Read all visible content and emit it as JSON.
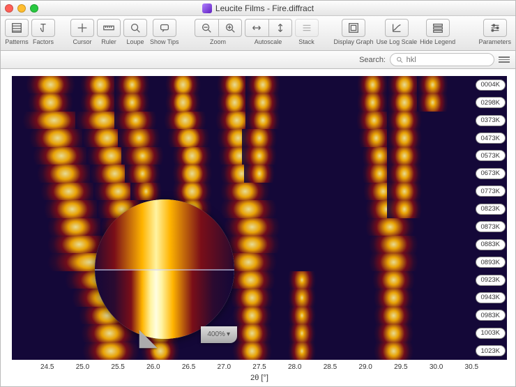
{
  "window": {
    "title": "Leucite Films - Fire.diffract"
  },
  "traffic_colors": {
    "close": "#ff5f57",
    "min": "#ffbd2e",
    "max": "#28c940"
  },
  "toolbar": {
    "patterns": "Patterns",
    "factors": "Factors",
    "cursor": "Cursor",
    "ruler": "Ruler",
    "loupe": "Loupe",
    "showtips": "Show Tips",
    "zoom": "Zoom",
    "autoscale": "Autoscale",
    "stack": "Stack",
    "display": "Display Graph",
    "log": "Use Log Scale",
    "legend": "Hide Legend",
    "params": "Parameters"
  },
  "search": {
    "label": "Search:",
    "placeholder": "hkl"
  },
  "axis": {
    "label": "2θ [°]",
    "min": 24.0,
    "max": 31.0,
    "ticks": [
      24.5,
      25.0,
      25.5,
      26.0,
      26.5,
      27.0,
      27.5,
      28.0,
      28.5,
      29.0,
      29.5,
      30.0,
      30.5
    ]
  },
  "colors": {
    "plot_bg": "#140838",
    "peak_center": "#fff3a0",
    "peak_mid": "#ffb400",
    "peak_outer": "#7a0e18",
    "peak_edge": "#2a0a30"
  },
  "rows": [
    {
      "label": "0004K",
      "peaks": [
        {
          "c": 24.55,
          "w": 0.35,
          "i": 0.9
        },
        {
          "c": 25.25,
          "w": 0.28,
          "i": 0.85
        },
        {
          "c": 25.7,
          "w": 0.25,
          "i": 0.5
        },
        {
          "c": 26.42,
          "w": 0.25,
          "i": 1.0
        },
        {
          "c": 27.15,
          "w": 0.25,
          "i": 0.95
        },
        {
          "c": 27.55,
          "w": 0.25,
          "i": 0.75
        },
        {
          "c": 29.1,
          "w": 0.22,
          "i": 0.55
        },
        {
          "c": 29.55,
          "w": 0.25,
          "i": 0.8
        },
        {
          "c": 29.95,
          "w": 0.22,
          "i": 0.4
        }
      ]
    },
    {
      "label": "0298K",
      "peaks": [
        {
          "c": 24.55,
          "w": 0.32,
          "i": 0.9
        },
        {
          "c": 25.25,
          "w": 0.28,
          "i": 0.85
        },
        {
          "c": 25.7,
          "w": 0.25,
          "i": 0.5
        },
        {
          "c": 26.42,
          "w": 0.25,
          "i": 1.0
        },
        {
          "c": 27.15,
          "w": 0.25,
          "i": 0.9
        },
        {
          "c": 27.55,
          "w": 0.25,
          "i": 0.7
        },
        {
          "c": 29.1,
          "w": 0.22,
          "i": 0.55
        },
        {
          "c": 29.55,
          "w": 0.25,
          "i": 0.8
        },
        {
          "c": 29.95,
          "w": 0.22,
          "i": 0.35
        }
      ]
    },
    {
      "label": "0373K",
      "peaks": [
        {
          "c": 24.6,
          "w": 0.45,
          "i": 0.9
        },
        {
          "c": 25.3,
          "w": 0.4,
          "i": 0.85
        },
        {
          "c": 25.75,
          "w": 0.3,
          "i": 0.5
        },
        {
          "c": 26.45,
          "w": 0.3,
          "i": 1.0
        },
        {
          "c": 27.18,
          "w": 0.3,
          "i": 0.9
        },
        {
          "c": 27.55,
          "w": 0.25,
          "i": 0.6
        },
        {
          "c": 29.12,
          "w": 0.25,
          "i": 0.5
        },
        {
          "c": 29.55,
          "w": 0.25,
          "i": 0.75
        }
      ]
    },
    {
      "label": "0473K",
      "peaks": [
        {
          "c": 24.65,
          "w": 0.4,
          "i": 0.9
        },
        {
          "c": 25.35,
          "w": 0.35,
          "i": 0.85
        },
        {
          "c": 25.8,
          "w": 0.3,
          "i": 0.45
        },
        {
          "c": 26.5,
          "w": 0.3,
          "i": 1.0
        },
        {
          "c": 27.2,
          "w": 0.3,
          "i": 0.85
        },
        {
          "c": 27.5,
          "w": 0.25,
          "i": 0.55
        },
        {
          "c": 29.15,
          "w": 0.25,
          "i": 0.5
        },
        {
          "c": 29.55,
          "w": 0.25,
          "i": 0.7
        }
      ]
    },
    {
      "label": "0573K",
      "peaks": [
        {
          "c": 24.7,
          "w": 0.4,
          "i": 0.9
        },
        {
          "c": 25.4,
          "w": 0.35,
          "i": 0.8
        },
        {
          "c": 25.85,
          "w": 0.3,
          "i": 0.4
        },
        {
          "c": 26.55,
          "w": 0.28,
          "i": 1.0
        },
        {
          "c": 27.22,
          "w": 0.3,
          "i": 0.8
        },
        {
          "c": 27.5,
          "w": 0.25,
          "i": 0.5
        },
        {
          "c": 29.2,
          "w": 0.25,
          "i": 0.5
        },
        {
          "c": 29.55,
          "w": 0.25,
          "i": 0.65
        }
      ]
    },
    {
      "label": "0673K",
      "peaks": [
        {
          "c": 24.75,
          "w": 0.4,
          "i": 0.85
        },
        {
          "c": 25.45,
          "w": 0.35,
          "i": 0.8
        },
        {
          "c": 25.85,
          "w": 0.25,
          "i": 0.35
        },
        {
          "c": 26.55,
          "w": 0.28,
          "i": 1.0
        },
        {
          "c": 27.25,
          "w": 0.3,
          "i": 0.8
        },
        {
          "c": 27.5,
          "w": 0.22,
          "i": 0.45
        },
        {
          "c": 29.2,
          "w": 0.25,
          "i": 0.5
        },
        {
          "c": 29.55,
          "w": 0.25,
          "i": 0.6
        }
      ]
    },
    {
      "label": "0773K",
      "peaks": [
        {
          "c": 24.8,
          "w": 0.4,
          "i": 0.85
        },
        {
          "c": 25.5,
          "w": 0.35,
          "i": 0.75
        },
        {
          "c": 25.9,
          "w": 0.22,
          "i": 0.3
        },
        {
          "c": 26.55,
          "w": 0.28,
          "i": 1.0
        },
        {
          "c": 27.3,
          "w": 0.35,
          "i": 0.85
        },
        {
          "c": 29.25,
          "w": 0.28,
          "i": 0.55
        },
        {
          "c": 29.55,
          "w": 0.25,
          "i": 0.55
        }
      ]
    },
    {
      "label": "0823K",
      "peaks": [
        {
          "c": 24.85,
          "w": 0.4,
          "i": 0.8
        },
        {
          "c": 25.55,
          "w": 0.35,
          "i": 0.7
        },
        {
          "c": 26.55,
          "w": 0.28,
          "i": 1.0
        },
        {
          "c": 27.35,
          "w": 0.4,
          "i": 0.85
        },
        {
          "c": 29.3,
          "w": 0.3,
          "i": 0.55
        },
        {
          "c": 29.55,
          "w": 0.25,
          "i": 0.5
        }
      ]
    },
    {
      "label": "0873K",
      "peaks": [
        {
          "c": 24.9,
          "w": 0.4,
          "i": 0.8
        },
        {
          "c": 25.6,
          "w": 0.35,
          "i": 0.65
        },
        {
          "c": 26.55,
          "w": 0.28,
          "i": 1.0
        },
        {
          "c": 27.4,
          "w": 0.4,
          "i": 0.85
        },
        {
          "c": 29.35,
          "w": 0.35,
          "i": 0.6
        }
      ]
    },
    {
      "label": "0883K",
      "peaks": [
        {
          "c": 24.95,
          "w": 0.45,
          "i": 0.8
        },
        {
          "c": 25.65,
          "w": 0.3,
          "i": 0.55
        },
        {
          "c": 26.5,
          "w": 0.28,
          "i": 1.0
        },
        {
          "c": 27.4,
          "w": 0.4,
          "i": 0.85
        },
        {
          "c": 29.4,
          "w": 0.35,
          "i": 0.6
        }
      ]
    },
    {
      "label": "0893K",
      "peaks": [
        {
          "c": 25.1,
          "w": 0.6,
          "i": 0.9
        },
        {
          "c": 26.2,
          "w": 0.3,
          "i": 1.0
        },
        {
          "c": 27.35,
          "w": 0.4,
          "i": 0.85
        },
        {
          "c": 29.4,
          "w": 0.35,
          "i": 0.65
        }
      ]
    },
    {
      "label": "0923K",
      "peaks": [
        {
          "c": 25.25,
          "w": 0.5,
          "i": 0.9
        },
        {
          "c": 26.15,
          "w": 0.28,
          "i": 1.0
        },
        {
          "c": 27.38,
          "w": 0.35,
          "i": 0.85
        },
        {
          "c": 28.1,
          "w": 0.2,
          "i": 0.25
        },
        {
          "c": 29.4,
          "w": 0.3,
          "i": 0.7
        }
      ]
    },
    {
      "label": "0943K",
      "peaks": [
        {
          "c": 25.3,
          "w": 0.45,
          "i": 0.85
        },
        {
          "c": 26.12,
          "w": 0.28,
          "i": 1.0
        },
        {
          "c": 27.4,
          "w": 0.3,
          "i": 0.8
        },
        {
          "c": 28.1,
          "w": 0.2,
          "i": 0.25
        },
        {
          "c": 29.4,
          "w": 0.28,
          "i": 0.7
        }
      ]
    },
    {
      "label": "0983K",
      "peaks": [
        {
          "c": 25.35,
          "w": 0.4,
          "i": 0.85
        },
        {
          "c": 26.1,
          "w": 0.28,
          "i": 1.0
        },
        {
          "c": 27.4,
          "w": 0.28,
          "i": 0.8
        },
        {
          "c": 28.1,
          "w": 0.2,
          "i": 0.25
        },
        {
          "c": 29.4,
          "w": 0.28,
          "i": 0.7
        }
      ]
    },
    {
      "label": "1003K",
      "peaks": [
        {
          "c": 25.38,
          "w": 0.4,
          "i": 0.85
        },
        {
          "c": 26.1,
          "w": 0.28,
          "i": 1.0
        },
        {
          "c": 27.4,
          "w": 0.28,
          "i": 0.8
        },
        {
          "c": 28.1,
          "w": 0.2,
          "i": 0.25
        },
        {
          "c": 29.4,
          "w": 0.28,
          "i": 0.7
        }
      ]
    },
    {
      "label": "1023K",
      "peaks": [
        {
          "c": 25.4,
          "w": 0.4,
          "i": 0.85
        },
        {
          "c": 26.1,
          "w": 0.28,
          "i": 1.0
        },
        {
          "c": 27.4,
          "w": 0.28,
          "i": 0.8
        },
        {
          "c": 28.1,
          "w": 0.2,
          "i": 0.25
        },
        {
          "c": 29.4,
          "w": 0.28,
          "i": 0.7
        }
      ]
    }
  ],
  "loupe": {
    "zoom": "400%",
    "cx_pct": 30.8,
    "cy_pct": 68
  }
}
